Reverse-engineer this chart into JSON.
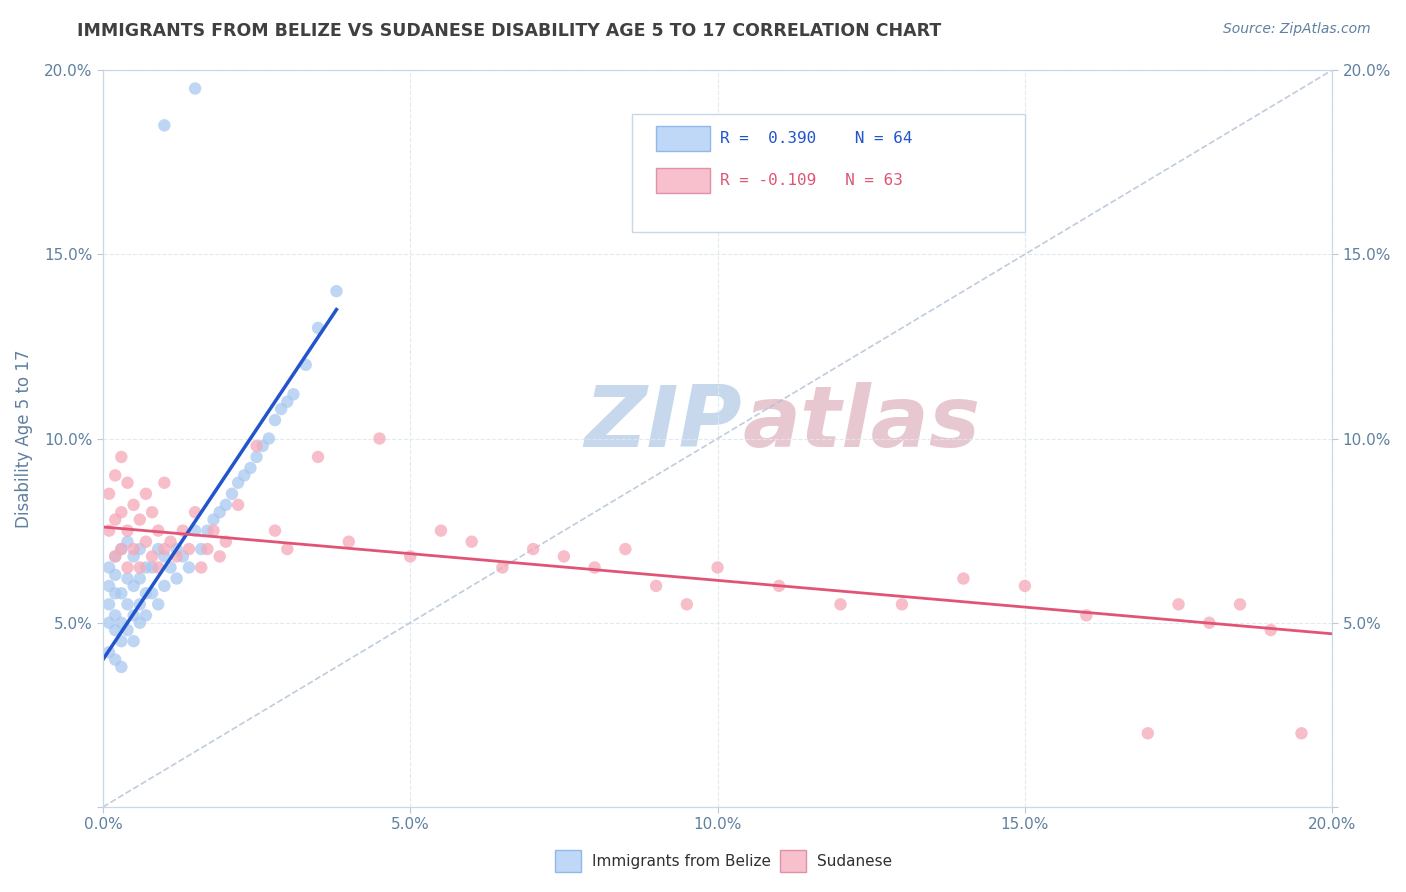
{
  "title": "IMMIGRANTS FROM BELIZE VS SUDANESE DISABILITY AGE 5 TO 17 CORRELATION CHART",
  "source_text": "Source: ZipAtlas.com",
  "ylabel": "Disability Age 5 to 17",
  "xlim": [
    0.0,
    0.2
  ],
  "ylim": [
    0.0,
    0.2
  ],
  "xtick_vals": [
    0.0,
    0.05,
    0.1,
    0.15,
    0.2
  ],
  "ytick_vals": [
    0.0,
    0.05,
    0.1,
    0.15,
    0.2
  ],
  "legend_r1": "R =  0.390",
  "legend_n1": "N = 64",
  "legend_r2": "R = -0.109",
  "legend_n2": "N = 63",
  "blue_color": "#a8c8f0",
  "pink_color": "#f5a8b8",
  "blue_trend_color": "#2255cc",
  "pink_trend_color": "#e05575",
  "legend_blue_face": "#c0d8f8",
  "legend_pink_face": "#f8c0cc",
  "watermark_color": "#dce8f5",
  "grid_color": "#dde8f0",
  "title_color": "#404040",
  "axis_color": "#6080a0",
  "blue_scatter": {
    "x": [
      0.001,
      0.001,
      0.001,
      0.001,
      0.001,
      0.002,
      0.002,
      0.002,
      0.002,
      0.002,
      0.002,
      0.003,
      0.003,
      0.003,
      0.003,
      0.003,
      0.004,
      0.004,
      0.004,
      0.004,
      0.005,
      0.005,
      0.005,
      0.005,
      0.006,
      0.006,
      0.006,
      0.006,
      0.007,
      0.007,
      0.007,
      0.008,
      0.008,
      0.009,
      0.009,
      0.01,
      0.01,
      0.011,
      0.012,
      0.012,
      0.013,
      0.014,
      0.015,
      0.016,
      0.017,
      0.018,
      0.019,
      0.02,
      0.021,
      0.022,
      0.023,
      0.024,
      0.025,
      0.026,
      0.027,
      0.028,
      0.029,
      0.03,
      0.031,
      0.033,
      0.035,
      0.038,
      0.01,
      0.015
    ],
    "y": [
      0.05,
      0.055,
      0.06,
      0.065,
      0.042,
      0.048,
      0.052,
      0.058,
      0.063,
      0.068,
      0.04,
      0.045,
      0.05,
      0.058,
      0.07,
      0.038,
      0.048,
      0.055,
      0.062,
      0.072,
      0.045,
      0.052,
      0.06,
      0.068,
      0.05,
      0.055,
      0.062,
      0.07,
      0.052,
      0.058,
      0.065,
      0.058,
      0.065,
      0.055,
      0.07,
      0.06,
      0.068,
      0.065,
      0.062,
      0.07,
      0.068,
      0.065,
      0.075,
      0.07,
      0.075,
      0.078,
      0.08,
      0.082,
      0.085,
      0.088,
      0.09,
      0.092,
      0.095,
      0.098,
      0.1,
      0.105,
      0.108,
      0.11,
      0.112,
      0.12,
      0.13,
      0.14,
      0.185,
      0.195
    ]
  },
  "pink_scatter": {
    "x": [
      0.001,
      0.001,
      0.002,
      0.002,
      0.002,
      0.003,
      0.003,
      0.003,
      0.004,
      0.004,
      0.004,
      0.005,
      0.005,
      0.006,
      0.006,
      0.007,
      0.007,
      0.008,
      0.008,
      0.009,
      0.009,
      0.01,
      0.01,
      0.011,
      0.012,
      0.013,
      0.014,
      0.015,
      0.016,
      0.017,
      0.018,
      0.019,
      0.02,
      0.022,
      0.025,
      0.028,
      0.03,
      0.035,
      0.04,
      0.045,
      0.05,
      0.055,
      0.06,
      0.065,
      0.07,
      0.075,
      0.08,
      0.085,
      0.09,
      0.095,
      0.1,
      0.11,
      0.12,
      0.13,
      0.14,
      0.15,
      0.16,
      0.17,
      0.175,
      0.18,
      0.185,
      0.19,
      0.195
    ],
    "y": [
      0.075,
      0.085,
      0.068,
      0.078,
      0.09,
      0.07,
      0.08,
      0.095,
      0.065,
      0.075,
      0.088,
      0.07,
      0.082,
      0.065,
      0.078,
      0.072,
      0.085,
      0.068,
      0.08,
      0.065,
      0.075,
      0.07,
      0.088,
      0.072,
      0.068,
      0.075,
      0.07,
      0.08,
      0.065,
      0.07,
      0.075,
      0.068,
      0.072,
      0.082,
      0.098,
      0.075,
      0.07,
      0.095,
      0.072,
      0.1,
      0.068,
      0.075,
      0.072,
      0.065,
      0.07,
      0.068,
      0.065,
      0.07,
      0.06,
      0.055,
      0.065,
      0.06,
      0.055,
      0.055,
      0.062,
      0.06,
      0.052,
      0.02,
      0.055,
      0.05,
      0.055,
      0.048,
      0.02
    ]
  },
  "blue_trend_x": [
    0.0,
    0.038
  ],
  "blue_trend_y": [
    0.04,
    0.135
  ],
  "pink_trend_x": [
    0.0,
    0.2
  ],
  "pink_trend_y": [
    0.076,
    0.047
  ],
  "diag_line_x": [
    0.0,
    0.2
  ],
  "diag_line_y": [
    0.0,
    0.2
  ]
}
